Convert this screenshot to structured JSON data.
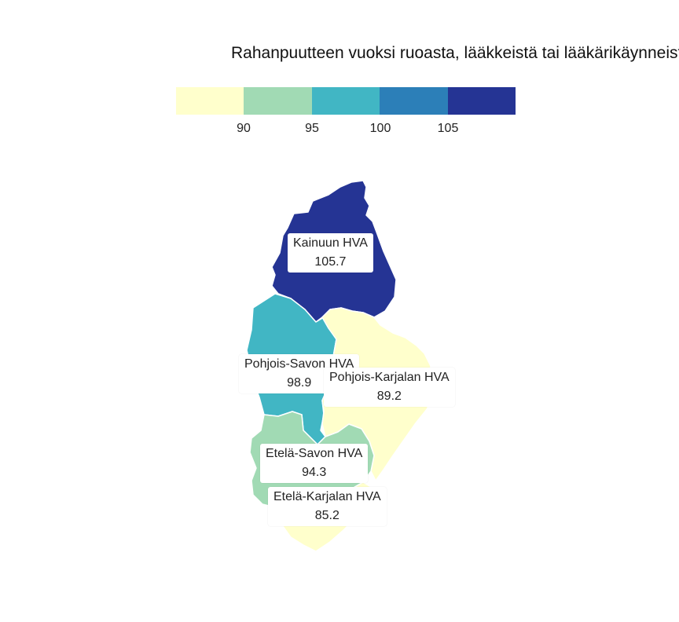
{
  "map": {
    "title": "Rahanpuutteen vuoksi ruoasta, lääkkeistä tai lääkärikäynneistä tinkineet",
    "legend": {
      "colors": [
        "#ffffcc",
        "#a1dab4",
        "#41b6c4",
        "#2c7fb8",
        "#253494"
      ],
      "ticks": [
        "90",
        "95",
        "100",
        "105"
      ],
      "breaks": [
        85,
        90,
        95,
        100,
        105,
        110
      ]
    },
    "regions": [
      {
        "name": "Kainuun HVA",
        "value": "105.7",
        "color": "#253494"
      },
      {
        "name": "Pohjois-Savon HVA",
        "value": "98.9",
        "color": "#41b6c4"
      },
      {
        "name": "Pohjois-Karjalan HVA",
        "value": "89.2",
        "color": "#ffffcc"
      },
      {
        "name": "Etelä-Savon HVA",
        "value": "94.3",
        "color": "#a1dab4"
      },
      {
        "name": "Etelä-Karjalan HVA",
        "value": "85.2",
        "color": "#ffffcc"
      }
    ]
  }
}
